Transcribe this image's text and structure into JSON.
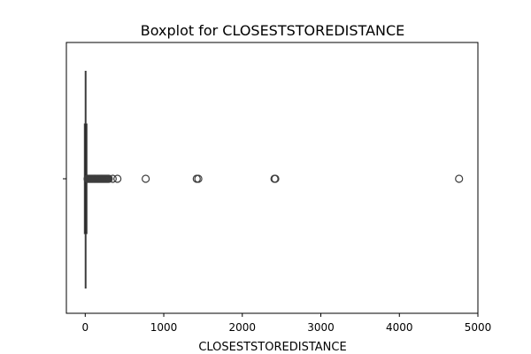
{
  "chart_data": {
    "type": "boxplot",
    "title": "Boxplot for CLOSESTSTOREDISTANCE",
    "xlabel": "CLOSESTSTOREDISTANCE",
    "ylabel": "",
    "orientation": "horizontal",
    "xlim": [
      -240,
      5000
    ],
    "xticks": [
      0,
      1000,
      2000,
      3000,
      4000,
      5000
    ],
    "xtick_labels": [
      "0",
      "1000",
      "2000",
      "3000",
      "4000",
      "5000"
    ],
    "grid": false,
    "box": {
      "whisker_low": 0,
      "q1": 0,
      "median": 5,
      "q3": 12,
      "whisker_high": 25
    },
    "outliers": [
      30,
      40,
      50,
      60,
      70,
      80,
      90,
      100,
      110,
      120,
      130,
      140,
      150,
      160,
      170,
      180,
      190,
      200,
      210,
      220,
      230,
      240,
      250,
      260,
      270,
      280,
      290,
      300,
      350,
      410,
      770,
      1420,
      1440,
      2410,
      2420,
      4760
    ],
    "colors": {
      "box_edge": "#3d3d3d",
      "box_fill": "#3d3d3d",
      "outlier_edge": "#3d3d3d",
      "axes": "#000000"
    }
  }
}
